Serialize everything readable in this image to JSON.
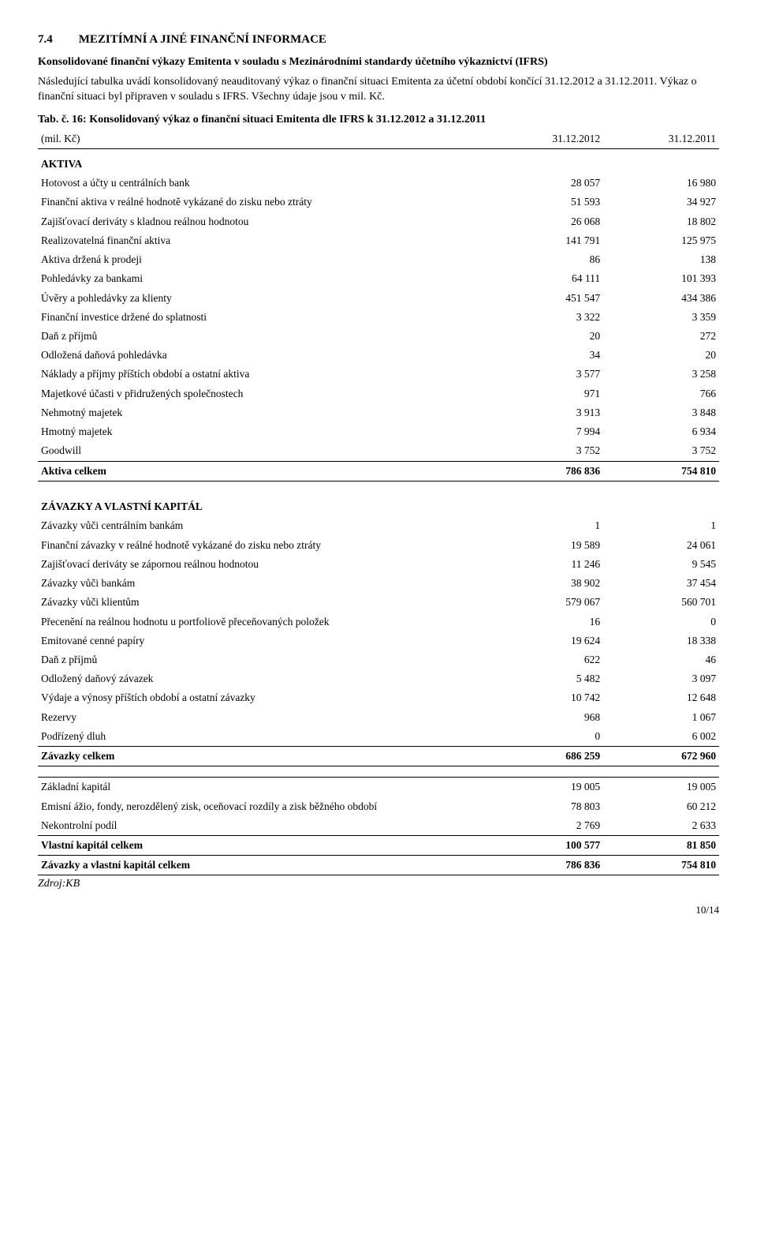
{
  "heading": {
    "number": "7.4",
    "title": "MEZITÍMNÍ A JINÉ FINANČNÍ INFORMACE"
  },
  "intro_bold": "Konsolidované finanční výkazy Emitenta v souladu s Mezinárodními standardy účetního výkaznictví (IFRS)",
  "intro_para": "Následující tabulka uvádí konsolidovaný neauditovaný výkaz o finanční situaci Emitenta za účetní období končící 31.12.2012 a 31.12.2011. Výkaz o finanční situaci byl připraven v souladu s IFRS. Všechny údaje jsou v mil. Kč.",
  "table_caption": "Tab. č. 16: Konsolidovaný výkaz o finanční situaci Emitenta dle IFRS k 31.12.2012 a 31.12.2011",
  "columns": {
    "label": "(mil. Kč)",
    "c1": "31.12.2012",
    "c2": "31.12.2011"
  },
  "aktiva_title": "AKTIVA",
  "aktiva_rows": [
    {
      "label": "Hotovost a účty u centrálních bank",
      "v1": "28 057",
      "v2": "16 980"
    },
    {
      "label": "Finanční aktiva v reálné hodnotě vykázané do zisku nebo ztráty",
      "v1": "51 593",
      "v2": "34 927"
    },
    {
      "label": "Zajišťovací deriváty s kladnou reálnou hodnotou",
      "v1": "26 068",
      "v2": "18 802"
    },
    {
      "label": "Realizovatelná finanční aktiva",
      "v1": "141 791",
      "v2": "125 975"
    },
    {
      "label": "Aktiva držená k prodeji",
      "v1": "86",
      "v2": "138"
    },
    {
      "label": "Pohledávky za bankami",
      "v1": "64 111",
      "v2": "101 393"
    },
    {
      "label": "Úvěry a pohledávky za klienty",
      "v1": "451 547",
      "v2": "434 386"
    },
    {
      "label": "Finanční investice držené do splatnosti",
      "v1": "3 322",
      "v2": "3 359"
    },
    {
      "label": "Daň z příjmů",
      "v1": "20",
      "v2": "272"
    },
    {
      "label": "Odložená daňová pohledávka",
      "v1": "34",
      "v2": "20"
    },
    {
      "label": "Náklady a příjmy příštích období a ostatní aktiva",
      "v1": "3 577",
      "v2": "3 258"
    },
    {
      "label": "Majetkové účasti v přidružených společnostech",
      "v1": "971",
      "v2": "766"
    },
    {
      "label": "Nehmotný majetek",
      "v1": "3 913",
      "v2": "3 848"
    },
    {
      "label": "Hmotný majetek",
      "v1": "7 994",
      "v2": "6 934"
    },
    {
      "label": "Goodwill",
      "v1": "3 752",
      "v2": "3 752"
    }
  ],
  "aktiva_total": {
    "label": "Aktiva celkem",
    "v1": "786 836",
    "v2": "754 810"
  },
  "zav_title": "ZÁVAZKY A VLASTNÍ KAPITÁL",
  "zav_rows": [
    {
      "label": "Závazky vůči centrálním bankám",
      "v1": "1",
      "v2": "1"
    },
    {
      "label": "Finanční závazky v reálné hodnotě vykázané do zisku nebo ztráty",
      "v1": "19 589",
      "v2": "24 061"
    },
    {
      "label": "Zajišťovací deriváty se zápornou reálnou hodnotou",
      "v1": "11 246",
      "v2": "9 545"
    },
    {
      "label": "Závazky vůči bankám",
      "v1": "38 902",
      "v2": "37 454"
    },
    {
      "label": "Závazky vůči klientům",
      "v1": "579 067",
      "v2": "560 701"
    },
    {
      "label": "Přecenění na reálnou hodnotu u portfoliově přeceňovaných položek",
      "v1": "16",
      "v2": "0"
    },
    {
      "label": "Emitované cenné papíry",
      "v1": "19 624",
      "v2": "18 338"
    },
    {
      "label": "Daň z příjmů",
      "v1": "622",
      "v2": "46"
    },
    {
      "label": "Odložený daňový závazek",
      "v1": "5 482",
      "v2": "3 097"
    },
    {
      "label": "Výdaje a výnosy příštích období a ostatní závazky",
      "v1": "10 742",
      "v2": "12 648"
    },
    {
      "label": "Rezervy",
      "v1": "968",
      "v2": "1 067"
    },
    {
      "label": "Podřízený dluh",
      "v1": "0",
      "v2": "6 002"
    }
  ],
  "zav_total": {
    "label": "Závazky celkem",
    "v1": "686 259",
    "v2": "672 960"
  },
  "equity_rows": [
    {
      "label": "Základní kapitál",
      "v1": "19 005",
      "v2": "19 005"
    },
    {
      "label": "Emisní ážio, fondy, nerozdělený zisk, oceňovací rozdíly a zisk běžného období",
      "v1": "78 803",
      "v2": "60 212"
    },
    {
      "label": "Nekontrolní podíl",
      "v1": "2 769",
      "v2": "2 633"
    }
  ],
  "equity_total": {
    "label": "Vlastní kapitál celkem",
    "v1": "100 577",
    "v2": "81 850"
  },
  "grand_total": {
    "label": "Závazky a vlastní kapitál celkem",
    "v1": "786 836",
    "v2": "754 810"
  },
  "source": "Zdroj:KB",
  "page": "10/14"
}
